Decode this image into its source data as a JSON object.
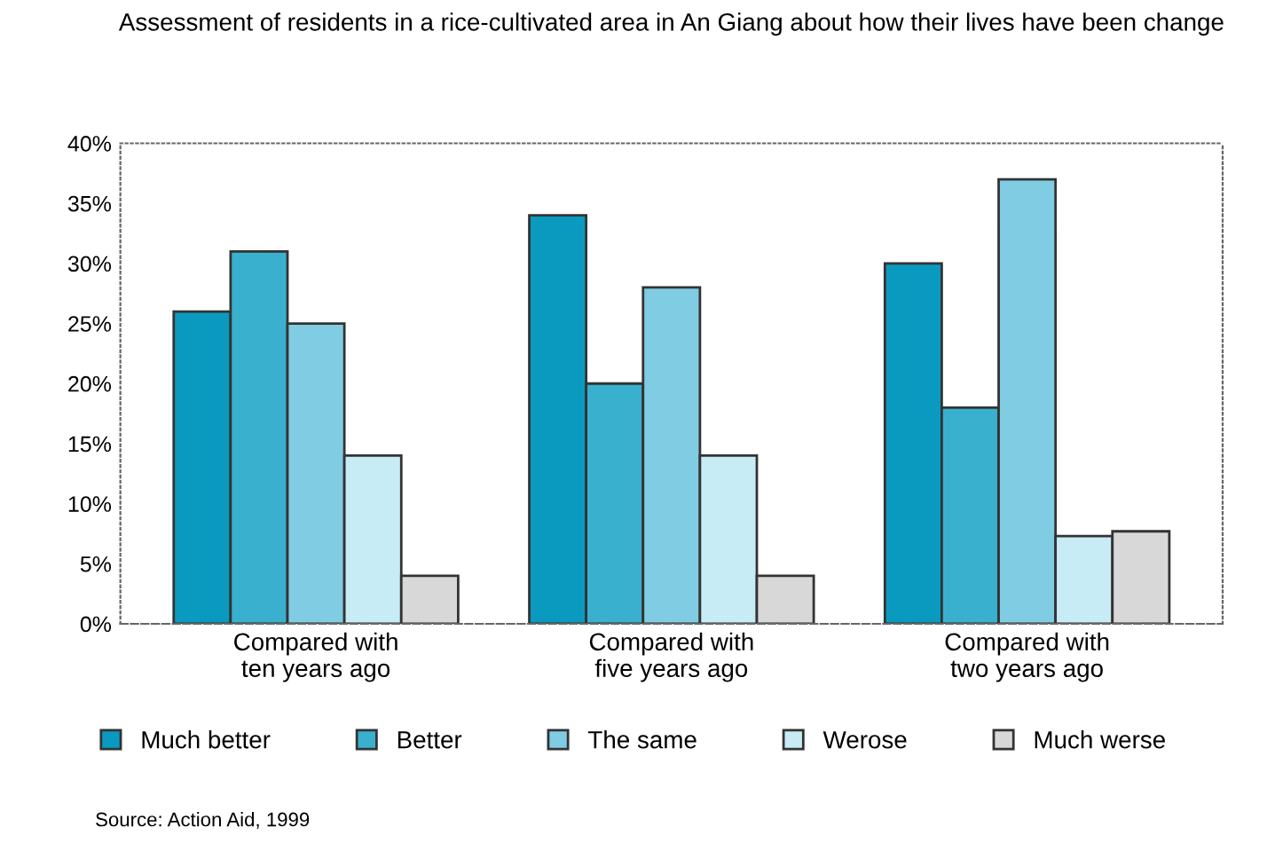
{
  "chart_data": {
    "type": "bar",
    "title": "Assessment of residents in a rice-cultivated area in An Giang about how their lives have been change",
    "categories": [
      "Compared with\nten years ago",
      "Compared with\nfive years ago",
      "Compared with\ntwo years ago"
    ],
    "series": [
      {
        "name": "Much better",
        "color": "#0a9ac0",
        "values": [
          26,
          34,
          30
        ]
      },
      {
        "name": "Better",
        "color": "#3ab0cf",
        "values": [
          31,
          20,
          18
        ]
      },
      {
        "name": "The same",
        "color": "#7fcce3",
        "values": [
          25,
          28,
          37
        ]
      },
      {
        "name": "Werose",
        "color": "#c8ecf5",
        "values": [
          14,
          14,
          7.3
        ]
      },
      {
        "name": "Much werse",
        "color": "#d8d8d8",
        "values": [
          4,
          4,
          7.7
        ]
      }
    ],
    "ylim": [
      0,
      40
    ],
    "yticks": [
      {
        "value": 0,
        "label": "0%"
      },
      {
        "value": 5,
        "label": "5%"
      },
      {
        "value": 10,
        "label": "10%"
      },
      {
        "value": 15,
        "label": "15%"
      },
      {
        "value": 20,
        "label": "20%"
      },
      {
        "value": 25,
        "label": "25%"
      },
      {
        "value": 30,
        "label": "30%"
      },
      {
        "value": 35,
        "label": "35%"
      },
      {
        "value": 40,
        "label": "40%"
      }
    ],
    "grid": false,
    "legend": "bottom",
    "annotations": [
      "Source: Action Aid, 1999"
    ]
  }
}
